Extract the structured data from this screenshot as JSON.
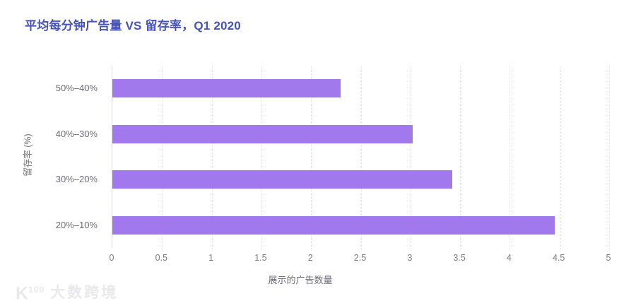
{
  "title": "平均每分钟广告量 VS 留存率，Q1 2020",
  "chart_data": {
    "type": "bar",
    "orientation": "horizontal",
    "title": "平均每分钟广告量 VS 留存率，Q1 2020",
    "categories": [
      "50%–40%",
      "40%–30%",
      "30%–20%",
      "20%–10%"
    ],
    "values": [
      2.3,
      3.02,
      3.42,
      4.45
    ],
    "xlabel": "展示的广告数量",
    "ylabel": "留存率 (%)",
    "xlim": [
      0,
      5
    ],
    "xticks": [
      "0",
      "0.5",
      "1",
      "1.5",
      "2",
      "2.5",
      "3",
      "3.5",
      "4",
      "4.5",
      "5"
    ],
    "grid": true,
    "legend": "none",
    "bar_color": "#a278ed"
  },
  "colors": {
    "title": "#4553b4",
    "bar": "#a278ed",
    "axis_line": "#d9d9e0",
    "gridline": "#e2e2ea",
    "tick_text": "#7b7a85",
    "category_text": "#6e6d78",
    "watermark": "#e9e9eb"
  },
  "watermark": {
    "logo": "K",
    "logo_sup": "100",
    "brand": "大数跨境"
  }
}
